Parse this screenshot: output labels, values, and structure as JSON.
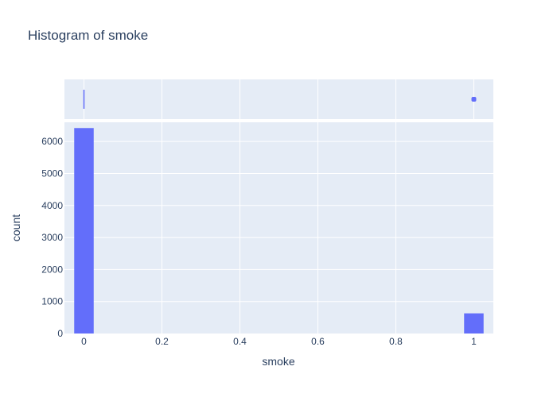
{
  "colors": {
    "plot_bg": "#e5ecf6",
    "grid": "#ffffff",
    "bar": "#636efa",
    "text": "#2a3f5f"
  },
  "chart_data": {
    "type": "bar",
    "title": "Histogram of smoke",
    "xlabel": "smoke",
    "ylabel": "count",
    "xlim": [
      -0.05,
      1.05
    ],
    "ylim": [
      0,
      6600
    ],
    "x_ticks": [
      0,
      0.2,
      0.4,
      0.6,
      0.8,
      1
    ],
    "x_tick_labels": [
      "0",
      "0.2",
      "0.4",
      "0.6",
      "0.8",
      "1"
    ],
    "y_ticks": [
      0,
      1000,
      2000,
      3000,
      4000,
      5000,
      6000
    ],
    "y_tick_labels": [
      "0",
      "1000",
      "2000",
      "3000",
      "4000",
      "5000",
      "6000"
    ],
    "bin_width": 0.05,
    "bins": [
      {
        "x": 0,
        "count": 6420
      },
      {
        "x": 1,
        "count": 630
      }
    ],
    "marginal": {
      "type": "rug",
      "points": [
        0,
        1
      ]
    },
    "grid": true,
    "legend": false
  }
}
